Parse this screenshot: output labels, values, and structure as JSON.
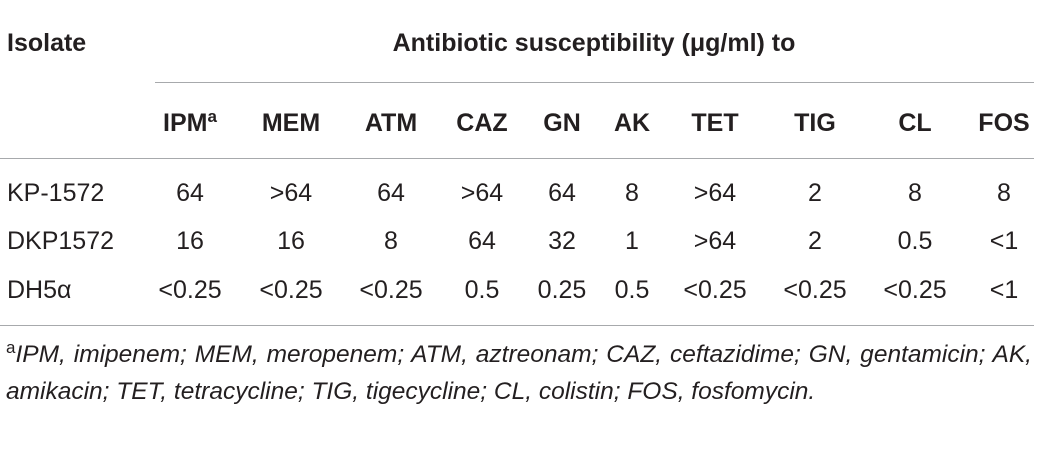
{
  "table": {
    "header": {
      "isolate": "Isolate",
      "group": "Antibiotic susceptibility (μg/ml) to"
    },
    "columns": [
      {
        "label": "IPM",
        "note": "a"
      },
      {
        "label": "MEM"
      },
      {
        "label": "ATM"
      },
      {
        "label": "CAZ"
      },
      {
        "label": "GN"
      },
      {
        "label": "AK"
      },
      {
        "label": "TET"
      },
      {
        "label": "TIG"
      },
      {
        "label": "CL"
      },
      {
        "label": "FOS"
      }
    ],
    "rows": [
      {
        "isolate": "KP-1572",
        "values": [
          "64",
          ">64",
          "64",
          ">64",
          "64",
          "8",
          ">64",
          "2",
          "8",
          "8"
        ]
      },
      {
        "isolate": "DKP1572",
        "values": [
          "16",
          "16",
          "8",
          "64",
          "32",
          "1",
          ">64",
          "2",
          "0.5",
          "<1"
        ]
      },
      {
        "isolate": "DH5α",
        "values": [
          "<0.25",
          "<0.25",
          "<0.25",
          "0.5",
          "0.25",
          "0.5",
          "<0.25",
          "<0.25",
          "<0.25",
          "<1"
        ]
      }
    ]
  },
  "footnote": {
    "mark": "a",
    "text": "IPM, imipenem; MEM, meropenem; ATM, aztreonam; CAZ, ceftazidime; GN, gentamicin; AK, amikacin; TET, tetracycline; TIG, tigecycline; CL, colistin; FOS, fosfomycin."
  }
}
